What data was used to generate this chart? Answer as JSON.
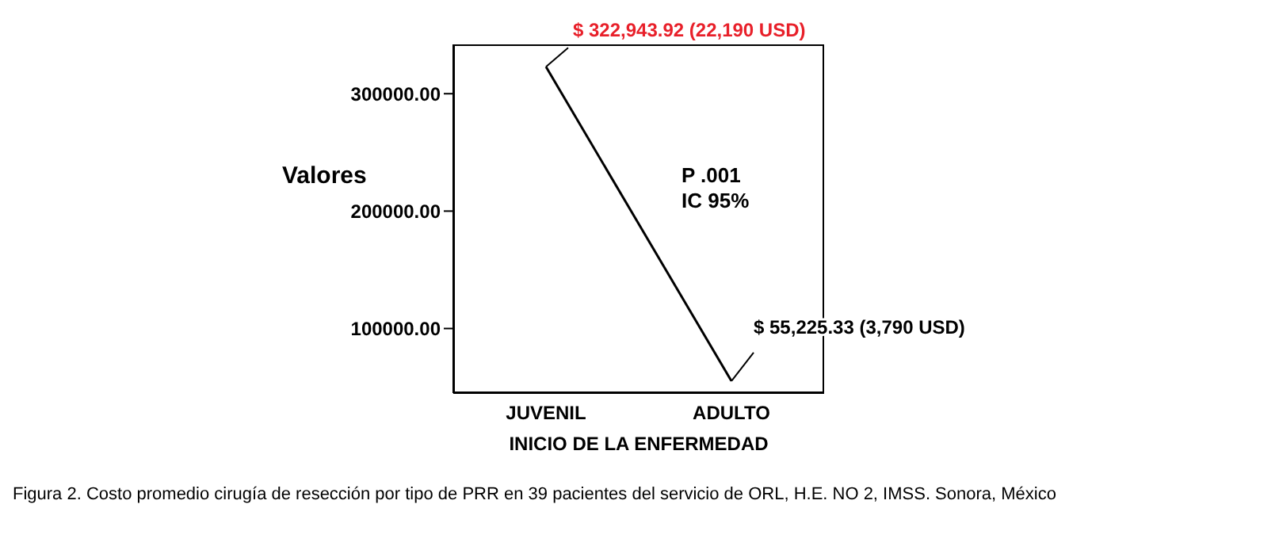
{
  "chart_data": {
    "type": "line",
    "ylabel": "Valores",
    "xlabel": "INICIO DE LA ENFERMEDAD",
    "categories": [
      "JUVENIL",
      "ADULTO"
    ],
    "series": [
      {
        "color": "#000000",
        "values": [
          322943.92,
          55225.33
        ],
        "value_labels": [
          "$ 322,943.92 (22,190 USD)",
          "$ 55,225.33 (3,790 USD)"
        ]
      }
    ],
    "ylim": [
      45000,
      342000
    ],
    "yticks": [
      {
        "value": 100000,
        "label": "100000.00"
      },
      {
        "value": 200000,
        "label": "200000.00"
      },
      {
        "value": 300000,
        "label": "300000.00"
      }
    ],
    "grid": false,
    "legend": false,
    "marker": "none",
    "line_style": "solid",
    "annotations": [
      "P .001",
      "IC 95%",
      "Figura 2. Costo promedio cirugía de resección por tipo de PRR en 39 pacientes del servicio de ORL, H.E. NO 2, IMSS. Sonora, México"
    ]
  }
}
